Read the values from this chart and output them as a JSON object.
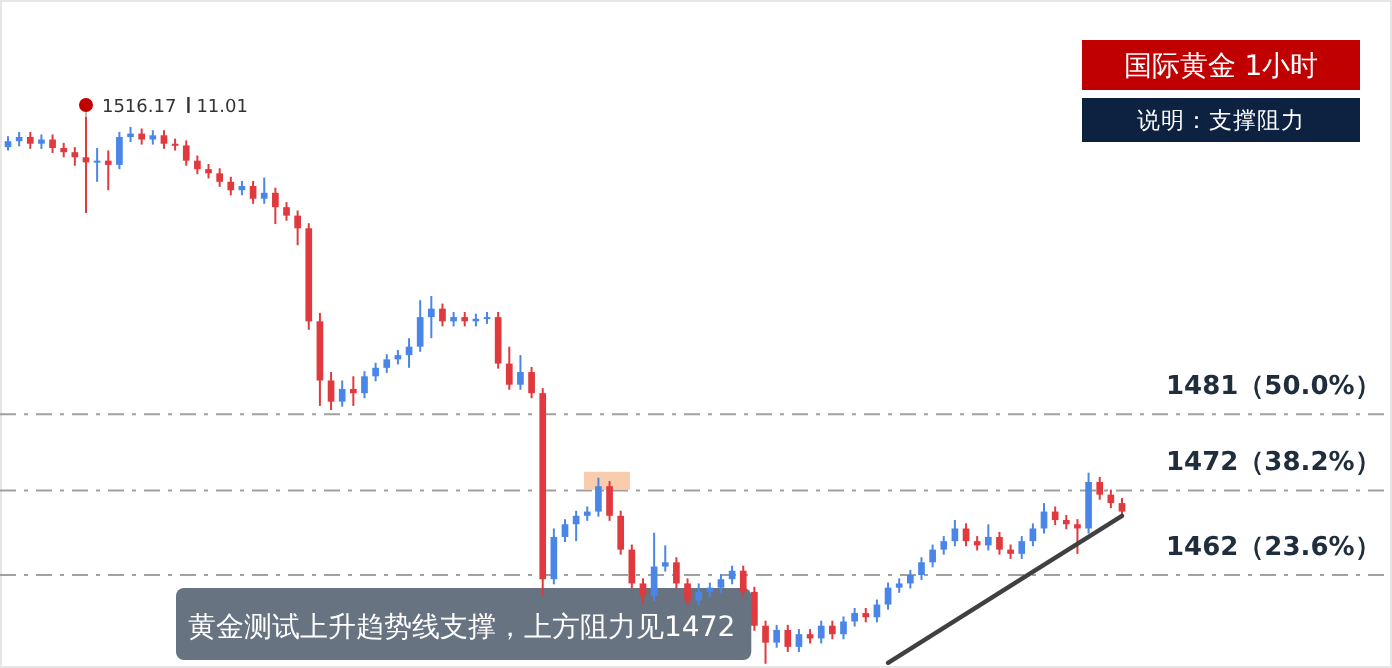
{
  "chart_data": {
    "type": "candlestick",
    "title": "国际黄金 1小时",
    "subtitle": "说明：支撑阻力",
    "annotations": [
      "1516.17",
      "11.01",
      "黄金测试上升趋势线支撑，上方阻力见1472"
    ],
    "categories": [
      null,
      null,
      null,
      null,
      null,
      null,
      null,
      null,
      null,
      null,
      null,
      null,
      null,
      null,
      null,
      null,
      null,
      null,
      null,
      null,
      null,
      null,
      null,
      null,
      null,
      null,
      null,
      null,
      null,
      null,
      null,
      null,
      null,
      null,
      null,
      null,
      null,
      null,
      null,
      null,
      null,
      null,
      null,
      null,
      null,
      null,
      null,
      null,
      null,
      null,
      null,
      null,
      null,
      null,
      null,
      null,
      null,
      null,
      null,
      null,
      null,
      null,
      null,
      null,
      null,
      null,
      null,
      null,
      null,
      null,
      null,
      null,
      null,
      null,
      null,
      null,
      null,
      null,
      null,
      null,
      null,
      null,
      null,
      null,
      null,
      null,
      null,
      null,
      null,
      null,
      null,
      null,
      null,
      null,
      null,
      null,
      null,
      null,
      null,
      null,
      null
    ],
    "ohlc": [
      [
        1512.6,
        1513.9,
        1512.2,
        1513.3
      ],
      [
        1513.3,
        1514.4,
        1512.7,
        1513.8
      ],
      [
        1513.8,
        1514.4,
        1512.4,
        1513.0
      ],
      [
        1513.0,
        1514.1,
        1512.4,
        1513.5
      ],
      [
        1513.5,
        1514.1,
        1511.9,
        1512.5
      ],
      [
        1512.5,
        1513.1,
        1511.4,
        1512.0
      ],
      [
        1512.0,
        1512.6,
        1510.4,
        1511.4
      ],
      [
        1511.4,
        1516.17,
        1504.8,
        1510.8
      ],
      [
        1510.8,
        1512.5,
        1508.5,
        1511.0
      ],
      [
        1511.0,
        1512.2,
        1507.5,
        1510.5
      ],
      [
        1510.5,
        1514.4,
        1510.0,
        1513.8
      ],
      [
        1513.8,
        1515.0,
        1513.2,
        1514.2
      ],
      [
        1514.2,
        1514.8,
        1512.9,
        1513.5
      ],
      [
        1513.5,
        1514.6,
        1512.9,
        1514.0
      ],
      [
        1514.0,
        1514.6,
        1512.4,
        1513.0
      ],
      [
        1513.0,
        1513.6,
        1512.2,
        1512.8
      ],
      [
        1512.8,
        1513.4,
        1510.4,
        1511.0
      ],
      [
        1511.0,
        1511.6,
        1509.4,
        1510.0
      ],
      [
        1510.0,
        1510.6,
        1508.9,
        1509.5
      ],
      [
        1509.5,
        1510.1,
        1507.9,
        1508.5
      ],
      [
        1508.5,
        1509.1,
        1506.9,
        1507.5
      ],
      [
        1507.5,
        1508.6,
        1506.9,
        1508.0
      ],
      [
        1508.0,
        1508.6,
        1505.9,
        1506.5
      ],
      [
        1506.5,
        1509.0,
        1505.9,
        1507.2
      ],
      [
        1507.2,
        1507.8,
        1503.5,
        1505.5
      ],
      [
        1505.5,
        1506.1,
        1503.9,
        1504.5
      ],
      [
        1504.5,
        1505.1,
        1501.0,
        1503.0
      ],
      [
        1503.0,
        1503.6,
        1491.0,
        1492.0
      ],
      [
        1492.0,
        1493.0,
        1482.0,
        1485.0
      ],
      [
        1485.0,
        1486.0,
        1481.5,
        1482.5
      ],
      [
        1482.5,
        1485.0,
        1481.9,
        1484.0
      ],
      [
        1484.0,
        1485.5,
        1482.0,
        1483.5
      ],
      [
        1483.5,
        1486.1,
        1482.9,
        1485.5
      ],
      [
        1485.5,
        1487.1,
        1484.9,
        1486.5
      ],
      [
        1486.5,
        1488.1,
        1485.9,
        1487.5
      ],
      [
        1487.5,
        1488.6,
        1486.9,
        1488.0
      ],
      [
        1488.0,
        1490.0,
        1486.5,
        1489.0
      ],
      [
        1489.0,
        1494.5,
        1488.4,
        1492.5
      ],
      [
        1492.5,
        1495.0,
        1490.0,
        1493.5
      ],
      [
        1493.5,
        1494.1,
        1491.4,
        1492.0
      ],
      [
        1492.0,
        1493.1,
        1491.4,
        1492.5
      ],
      [
        1492.5,
        1493.1,
        1491.4,
        1492.0
      ],
      [
        1492.0,
        1492.9,
        1491.4,
        1492.3
      ],
      [
        1492.3,
        1493.1,
        1491.7,
        1492.5
      ],
      [
        1492.5,
        1493.1,
        1486.4,
        1487.0
      ],
      [
        1487.0,
        1489.0,
        1483.9,
        1484.5
      ],
      [
        1484.5,
        1488.0,
        1483.9,
        1486.0
      ],
      [
        1486.0,
        1486.6,
        1482.9,
        1483.5
      ],
      [
        1483.5,
        1484.1,
        1459.5,
        1461.5
      ],
      [
        1461.5,
        1467.5,
        1460.9,
        1466.5
      ],
      [
        1466.5,
        1468.6,
        1465.9,
        1468.0
      ],
      [
        1468.0,
        1469.6,
        1466.0,
        1469.0
      ],
      [
        1469.0,
        1470.1,
        1468.4,
        1469.5
      ],
      [
        1469.5,
        1473.5,
        1468.9,
        1472.5
      ],
      [
        1472.5,
        1473.1,
        1468.4,
        1469.0
      ],
      [
        1469.0,
        1469.6,
        1464.4,
        1465.0
      ],
      [
        1465.0,
        1465.6,
        1460.4,
        1461.0
      ],
      [
        1461.0,
        1461.6,
        1458.5,
        1459.5
      ],
      [
        1459.5,
        1467.0,
        1458.9,
        1463.0
      ],
      [
        1463.0,
        1465.5,
        1462.4,
        1463.5
      ],
      [
        1463.5,
        1464.1,
        1460.4,
        1461.0
      ],
      [
        1461.0,
        1461.6,
        1458.4,
        1459.0
      ],
      [
        1459.0,
        1461.0,
        1458.4,
        1460.0
      ],
      [
        1460.0,
        1461.1,
        1459.4,
        1460.5
      ],
      [
        1460.5,
        1462.1,
        1459.9,
        1461.5
      ],
      [
        1461.5,
        1463.1,
        1460.9,
        1462.5
      ],
      [
        1462.5,
        1463.1,
        1459.4,
        1460.0
      ],
      [
        1460.0,
        1460.6,
        1455.4,
        1456.0
      ],
      [
        1456.0,
        1456.6,
        1451.5,
        1454.0
      ],
      [
        1454.0,
        1456.1,
        1453.4,
        1455.5
      ],
      [
        1455.5,
        1456.1,
        1452.9,
        1453.5
      ],
      [
        1453.5,
        1455.6,
        1452.9,
        1455.0
      ],
      [
        1455.0,
        1455.6,
        1453.9,
        1454.5
      ],
      [
        1454.5,
        1456.6,
        1453.9,
        1456.0
      ],
      [
        1456.0,
        1456.6,
        1454.4,
        1455.0
      ],
      [
        1455.0,
        1457.1,
        1454.4,
        1456.5
      ],
      [
        1456.5,
        1458.1,
        1455.9,
        1457.5
      ],
      [
        1457.5,
        1458.1,
        1456.4,
        1457.0
      ],
      [
        1457.0,
        1459.1,
        1456.4,
        1458.5
      ],
      [
        1458.5,
        1461.1,
        1457.9,
        1460.5
      ],
      [
        1460.5,
        1461.6,
        1459.9,
        1461.0
      ],
      [
        1461.0,
        1462.6,
        1460.4,
        1462.0
      ],
      [
        1462.0,
        1464.1,
        1461.4,
        1463.5
      ],
      [
        1463.5,
        1465.6,
        1462.9,
        1465.0
      ],
      [
        1465.0,
        1466.6,
        1464.4,
        1466.0
      ],
      [
        1466.0,
        1468.5,
        1465.4,
        1467.5
      ],
      [
        1467.5,
        1468.1,
        1465.4,
        1466.0
      ],
      [
        1466.0,
        1466.6,
        1464.9,
        1465.5
      ],
      [
        1465.5,
        1468.0,
        1464.9,
        1466.5
      ],
      [
        1466.5,
        1467.1,
        1464.4,
        1465.0
      ],
      [
        1465.0,
        1465.6,
        1463.9,
        1464.5
      ],
      [
        1464.5,
        1466.6,
        1463.9,
        1466.0
      ],
      [
        1466.0,
        1468.1,
        1465.4,
        1467.5
      ],
      [
        1467.5,
        1470.5,
        1466.9,
        1469.5
      ],
      [
        1469.5,
        1470.1,
        1467.9,
        1468.5
      ],
      [
        1468.5,
        1469.1,
        1467.4,
        1468.0
      ],
      [
        1468.0,
        1468.6,
        1464.5,
        1467.5
      ],
      [
        1467.5,
        1474.1,
        1466.9,
        1473.0
      ],
      [
        1473.0,
        1473.6,
        1470.9,
        1471.5
      ],
      [
        1471.5,
        1472.1,
        1469.9,
        1470.5
      ],
      [
        1470.5,
        1471.1,
        1468.9,
        1469.5
      ]
    ],
    "series": [
      {
        "type": "line",
        "values": [
          null,
          null,
          null,
          null,
          null,
          null,
          null,
          null,
          null,
          null,
          null,
          null,
          null,
          null,
          null,
          null,
          null,
          null,
          null,
          null,
          null,
          null,
          null,
          null,
          null,
          null,
          null,
          null,
          null,
          null,
          null,
          null,
          null,
          null,
          null,
          null,
          null,
          null,
          null,
          null,
          null,
          null,
          null,
          null,
          null,
          null,
          null,
          null,
          null,
          null,
          null,
          null,
          null,
          null,
          null,
          null,
          null,
          null,
          null,
          null,
          null,
          null,
          null,
          null,
          null,
          null,
          null,
          null,
          null,
          null,
          null,
          null,
          null,
          null,
          null,
          null,
          null,
          null,
          null,
          1451.6,
          null,
          null,
          null,
          null,
          null,
          null,
          null,
          null,
          null,
          null,
          null,
          null,
          null,
          null,
          null,
          null,
          null,
          null,
          null,
          null,
          1469.0
        ],
        "color": "#404040"
      }
    ],
    "ref_lines": [
      {
        "axis": "y",
        "value": 1481,
        "label": "1481（50.0%）",
        "color": "#a0a0a0",
        "line_style": "dashdot"
      },
      {
        "axis": "y",
        "value": 1472,
        "label": "1472（38.2%）",
        "color": "#a0a0a0",
        "line_style": "dashdot"
      },
      {
        "axis": "y",
        "value": 1462,
        "label": "1462（23.6%）",
        "color": "#a0a0a0",
        "line_style": "dashdot"
      }
    ],
    "ylim": [
      1451,
      1530
    ]
  }
}
